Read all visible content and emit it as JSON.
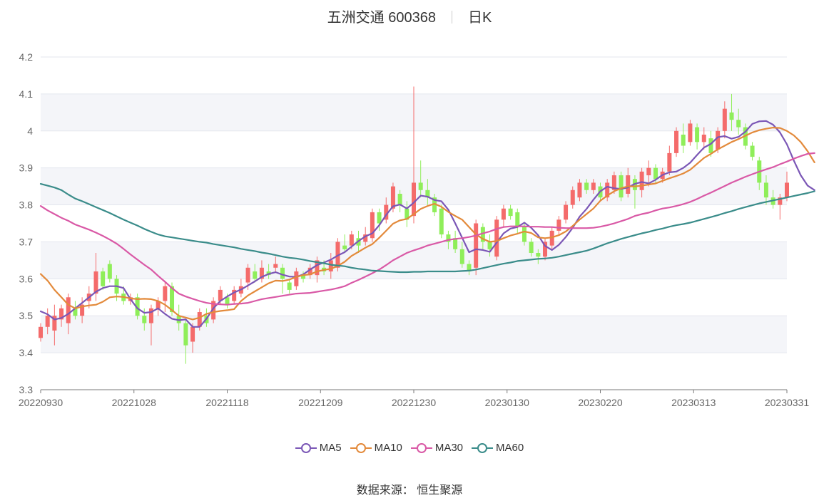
{
  "title": {
    "stock": "五洲交通 600368",
    "period": "日K"
  },
  "source": "数据来源： 恒生聚源",
  "colors": {
    "up": "#f46b6b",
    "down": "#8fee5a",
    "MA5": "#7b57b6",
    "MA10": "#e38a3b",
    "MA30": "#d959a6",
    "MA60": "#3a8c8a"
  },
  "chart_data": {
    "type": "candlestick",
    "ylim": [
      3.3,
      4.2
    ],
    "yticks": [
      "3.3",
      "3.4",
      "3.5",
      "3.6",
      "3.7",
      "3.8",
      "3.9",
      "4",
      "4.1",
      "4.2"
    ],
    "xticks": [
      "20220930",
      "20221028",
      "20221118",
      "20221209",
      "20221230",
      "20230130",
      "20230220",
      "20230313",
      "20230331"
    ],
    "candles": [
      [
        3.44,
        3.47,
        3.43,
        3.48
      ],
      [
        3.47,
        3.5,
        3.45,
        3.52
      ],
      [
        3.46,
        3.5,
        3.42,
        3.53
      ],
      [
        3.49,
        3.52,
        3.47,
        3.53
      ],
      [
        3.48,
        3.55,
        3.45,
        3.56
      ],
      [
        3.52,
        3.5,
        3.49,
        3.54
      ],
      [
        3.5,
        3.53,
        3.48,
        3.55
      ],
      [
        3.54,
        3.56,
        3.52,
        3.58
      ],
      [
        3.56,
        3.62,
        3.54,
        3.67
      ],
      [
        3.62,
        3.58,
        3.57,
        3.63
      ],
      [
        3.64,
        3.6,
        3.59,
        3.65
      ],
      [
        3.6,
        3.56,
        3.54,
        3.61
      ],
      [
        3.56,
        3.54,
        3.53,
        3.58
      ],
      [
        3.54,
        3.55,
        3.53,
        3.56
      ],
      [
        3.55,
        3.5,
        3.49,
        3.56
      ],
      [
        3.5,
        3.48,
        3.46,
        3.52
      ],
      [
        3.48,
        3.52,
        3.42,
        3.53
      ],
      [
        3.52,
        3.54,
        3.5,
        3.55
      ],
      [
        3.54,
        3.58,
        3.51,
        3.59
      ],
      [
        3.58,
        3.51,
        3.5,
        3.59
      ],
      [
        3.5,
        3.48,
        3.46,
        3.53
      ],
      [
        3.48,
        3.42,
        3.37,
        3.49
      ],
      [
        3.43,
        3.47,
        3.4,
        3.48
      ],
      [
        3.47,
        3.51,
        3.46,
        3.52
      ],
      [
        3.5,
        3.48,
        3.47,
        3.52
      ],
      [
        3.49,
        3.54,
        3.48,
        3.55
      ],
      [
        3.54,
        3.57,
        3.53,
        3.58
      ],
      [
        3.55,
        3.53,
        3.52,
        3.56
      ],
      [
        3.54,
        3.57,
        3.53,
        3.58
      ],
      [
        3.56,
        3.58,
        3.55,
        3.6
      ],
      [
        3.59,
        3.63,
        3.57,
        3.64
      ],
      [
        3.62,
        3.6,
        3.59,
        3.64
      ],
      [
        3.6,
        3.63,
        3.59,
        3.65
      ],
      [
        3.62,
        3.61,
        3.6,
        3.64
      ],
      [
        3.63,
        3.64,
        3.62,
        3.66
      ],
      [
        3.63,
        3.6,
        3.56,
        3.64
      ],
      [
        3.59,
        3.57,
        3.56,
        3.6
      ],
      [
        3.58,
        3.62,
        3.57,
        3.63
      ],
      [
        3.61,
        3.6,
        3.59,
        3.62
      ],
      [
        3.61,
        3.63,
        3.6,
        3.64
      ],
      [
        3.61,
        3.65,
        3.59,
        3.66
      ],
      [
        3.63,
        3.62,
        3.61,
        3.65
      ],
      [
        3.62,
        3.65,
        3.6,
        3.67
      ],
      [
        3.63,
        3.7,
        3.62,
        3.71
      ],
      [
        3.69,
        3.68,
        3.67,
        3.72
      ],
      [
        3.69,
        3.72,
        3.68,
        3.73
      ],
      [
        3.71,
        3.69,
        3.67,
        3.73
      ],
      [
        3.7,
        3.72,
        3.69,
        3.74
      ],
      [
        3.71,
        3.78,
        3.7,
        3.79
      ],
      [
        3.78,
        3.75,
        3.73,
        3.79
      ],
      [
        3.76,
        3.8,
        3.75,
        3.82
      ],
      [
        3.79,
        3.85,
        3.78,
        3.86
      ],
      [
        3.83,
        3.8,
        3.78,
        3.84
      ],
      [
        3.79,
        3.76,
        3.74,
        3.81
      ],
      [
        3.77,
        3.86,
        3.75,
        4.12
      ],
      [
        3.86,
        3.84,
        3.82,
        3.92
      ],
      [
        3.84,
        3.82,
        3.8,
        3.87
      ],
      [
        3.82,
        3.78,
        3.77,
        3.83
      ],
      [
        3.79,
        3.72,
        3.71,
        3.8
      ],
      [
        3.72,
        3.7,
        3.68,
        3.73
      ],
      [
        3.71,
        3.68,
        3.67,
        3.73
      ],
      [
        3.68,
        3.64,
        3.63,
        3.7
      ],
      [
        3.64,
        3.62,
        3.61,
        3.65
      ],
      [
        3.63,
        3.75,
        3.61,
        3.76
      ],
      [
        3.74,
        3.7,
        3.68,
        3.75
      ],
      [
        3.7,
        3.68,
        3.66,
        3.72
      ],
      [
        3.66,
        3.76,
        3.65,
        3.77
      ],
      [
        3.76,
        3.79,
        3.74,
        3.8
      ],
      [
        3.79,
        3.77,
        3.76,
        3.8
      ],
      [
        3.78,
        3.74,
        3.72,
        3.79
      ],
      [
        3.74,
        3.7,
        3.69,
        3.75
      ],
      [
        3.7,
        3.67,
        3.66,
        3.71
      ],
      [
        3.67,
        3.66,
        3.64,
        3.68
      ],
      [
        3.66,
        3.7,
        3.65,
        3.71
      ],
      [
        3.69,
        3.73,
        3.68,
        3.74
      ],
      [
        3.73,
        3.76,
        3.72,
        3.77
      ],
      [
        3.76,
        3.8,
        3.75,
        3.81
      ],
      [
        3.8,
        3.84,
        3.79,
        3.85
      ],
      [
        3.82,
        3.86,
        3.81,
        3.87
      ],
      [
        3.86,
        3.84,
        3.83,
        3.87
      ],
      [
        3.84,
        3.86,
        3.83,
        3.87
      ],
      [
        3.85,
        3.82,
        3.81,
        3.86
      ],
      [
        3.82,
        3.86,
        3.81,
        3.87
      ],
      [
        3.84,
        3.88,
        3.83,
        3.89
      ],
      [
        3.88,
        3.82,
        3.81,
        3.89
      ],
      [
        3.83,
        3.88,
        3.82,
        3.9
      ],
      [
        3.87,
        3.84,
        3.79,
        3.88
      ],
      [
        3.84,
        3.89,
        3.82,
        3.9
      ],
      [
        3.88,
        3.9,
        3.85,
        3.92
      ],
      [
        3.9,
        3.87,
        3.86,
        3.91
      ],
      [
        3.87,
        3.89,
        3.86,
        3.9
      ],
      [
        3.89,
        3.94,
        3.88,
        3.96
      ],
      [
        3.94,
        4.0,
        3.93,
        4.01
      ],
      [
        3.99,
        3.96,
        3.94,
        4.02
      ],
      [
        3.97,
        4.02,
        3.96,
        4.03
      ],
      [
        4.01,
        3.97,
        3.95,
        4.02
      ],
      [
        3.97,
        3.99,
        3.95,
        4.01
      ],
      [
        3.98,
        3.94,
        3.93,
        4.0
      ],
      [
        3.95,
        4.0,
        3.94,
        4.01
      ],
      [
        4.0,
        4.06,
        3.98,
        4.08
      ],
      [
        4.05,
        4.03,
        4.0,
        4.1
      ],
      [
        4.03,
        4.01,
        3.99,
        4.06
      ],
      [
        4.01,
        3.96,
        3.95,
        4.02
      ],
      [
        3.96,
        3.93,
        3.92,
        3.97
      ],
      [
        3.92,
        3.86,
        3.84,
        3.93
      ],
      [
        3.86,
        3.82,
        3.8,
        3.88
      ],
      [
        3.82,
        3.8,
        3.79,
        3.84
      ],
      [
        3.8,
        3.82,
        3.76,
        3.83
      ],
      [
        3.82,
        3.86,
        3.81,
        3.89
      ]
    ],
    "series": [
      {
        "name": "MA5",
        "values": [
          3.512,
          3.504,
          3.49,
          3.494,
          3.505,
          3.52,
          3.535,
          3.55,
          3.565,
          3.575,
          3.58,
          3.58,
          3.575,
          3.545,
          3.52,
          3.508,
          3.51,
          3.52,
          3.505,
          3.492,
          3.488,
          3.49,
          3.47,
          3.47,
          3.492,
          3.52,
          3.54,
          3.552,
          3.563,
          3.571,
          3.582,
          3.593,
          3.605,
          3.613,
          3.618,
          3.611,
          3.606,
          3.605,
          3.612,
          3.625,
          3.637,
          3.644,
          3.652,
          3.663,
          3.672,
          3.687,
          3.702,
          3.715,
          3.723,
          3.745,
          3.773,
          3.796,
          3.801,
          3.79,
          3.806,
          3.825,
          3.822,
          3.813,
          3.81,
          3.787,
          3.75,
          3.711,
          3.672,
          3.68,
          3.678,
          3.673,
          3.698,
          3.723,
          3.736,
          3.74,
          3.752,
          3.738,
          3.718,
          3.689,
          3.678,
          3.692,
          3.713,
          3.738,
          3.768,
          3.789,
          3.814,
          3.837,
          3.849,
          3.845,
          3.843,
          3.847,
          3.857,
          3.862,
          3.858,
          3.868,
          3.881,
          3.888,
          3.89,
          3.9,
          3.914,
          3.935,
          3.955,
          3.965,
          3.983,
          3.986,
          3.979,
          3.984,
          3.998,
          4.019,
          4.026,
          4.027,
          4.017,
          3.996,
          3.964,
          3.92,
          3.88,
          3.852,
          3.84
        ]
      },
      {
        "name": "MA10",
        "values": [
          3.613,
          3.595,
          3.57,
          3.55,
          3.53,
          3.52,
          3.525,
          3.528,
          3.53,
          3.538,
          3.55,
          3.552,
          3.551,
          3.547,
          3.545,
          3.546,
          3.545,
          3.54,
          3.53,
          3.515,
          3.5,
          3.495,
          3.49,
          3.495,
          3.505,
          3.51,
          3.513,
          3.515,
          3.518,
          3.54,
          3.555,
          3.566,
          3.577,
          3.588,
          3.595,
          3.594,
          3.598,
          3.605,
          3.61,
          3.612,
          3.62,
          3.624,
          3.627,
          3.635,
          3.646,
          3.662,
          3.673,
          3.684,
          3.694,
          3.711,
          3.73,
          3.749,
          3.758,
          3.762,
          3.775,
          3.789,
          3.797,
          3.803,
          3.795,
          3.781,
          3.77,
          3.76,
          3.74,
          3.72,
          3.708,
          3.7,
          3.702,
          3.71,
          3.717,
          3.722,
          3.728,
          3.724,
          3.712,
          3.71,
          3.712,
          3.718,
          3.728,
          3.743,
          3.76,
          3.775,
          3.79,
          3.811,
          3.825,
          3.837,
          3.845,
          3.85,
          3.85,
          3.852,
          3.855,
          3.858,
          3.865,
          3.872,
          3.878,
          3.885,
          3.895,
          3.911,
          3.927,
          3.938,
          3.95,
          3.96,
          3.97,
          3.978,
          3.987,
          3.996,
          4.002,
          4.006,
          4.009,
          4.008,
          4.0,
          3.988,
          3.97,
          3.945,
          3.915
        ]
      },
      {
        "name": "MA30",
        "values": [
          3.797,
          3.785,
          3.775,
          3.765,
          3.757,
          3.747,
          3.74,
          3.733,
          3.725,
          3.716,
          3.706,
          3.695,
          3.681,
          3.666,
          3.652,
          3.638,
          3.625,
          3.608,
          3.592,
          3.575,
          3.56,
          3.552,
          3.546,
          3.54,
          3.535,
          3.532,
          3.531,
          3.53,
          3.532,
          3.533,
          3.535,
          3.54,
          3.545,
          3.548,
          3.551,
          3.554,
          3.557,
          3.56,
          3.561,
          3.562,
          3.565,
          3.568,
          3.571,
          3.575,
          3.58,
          3.589,
          3.597,
          3.606,
          3.615,
          3.625,
          3.637,
          3.65,
          3.66,
          3.67,
          3.677,
          3.683,
          3.69,
          3.695,
          3.7,
          3.705,
          3.708,
          3.71,
          3.713,
          3.717,
          3.723,
          3.728,
          3.735,
          3.74,
          3.742,
          3.742,
          3.742,
          3.741,
          3.741,
          3.74,
          3.74,
          3.738,
          3.737,
          3.737,
          3.737,
          3.737,
          3.738,
          3.741,
          3.745,
          3.75,
          3.756,
          3.762,
          3.77,
          3.775,
          3.779,
          3.785,
          3.79,
          3.793,
          3.797,
          3.802,
          3.808,
          3.816,
          3.825,
          3.833,
          3.842,
          3.851,
          3.86,
          3.868,
          3.876,
          3.883,
          3.89,
          3.896,
          3.902,
          3.91,
          3.917,
          3.925,
          3.932,
          3.938,
          3.94
        ]
      },
      {
        "name": "MA60",
        "values": [
          3.857,
          3.852,
          3.847,
          3.84,
          3.828,
          3.817,
          3.81,
          3.802,
          3.794,
          3.786,
          3.778,
          3.769,
          3.76,
          3.752,
          3.744,
          3.735,
          3.727,
          3.72,
          3.715,
          3.712,
          3.709,
          3.706,
          3.703,
          3.7,
          3.698,
          3.694,
          3.691,
          3.688,
          3.685,
          3.681,
          3.678,
          3.675,
          3.671,
          3.668,
          3.664,
          3.66,
          3.657,
          3.655,
          3.652,
          3.648,
          3.645,
          3.642,
          3.638,
          3.636,
          3.634,
          3.63,
          3.627,
          3.625,
          3.622,
          3.621,
          3.62,
          3.619,
          3.618,
          3.618,
          3.619,
          3.619,
          3.62,
          3.62,
          3.62,
          3.62,
          3.62,
          3.621,
          3.622,
          3.625,
          3.629,
          3.633,
          3.637,
          3.641,
          3.644,
          3.648,
          3.65,
          3.652,
          3.654,
          3.655,
          3.657,
          3.66,
          3.664,
          3.668,
          3.672,
          3.676,
          3.682,
          3.689,
          3.696,
          3.702,
          3.708,
          3.713,
          3.718,
          3.723,
          3.727,
          3.732,
          3.736,
          3.741,
          3.745,
          3.748,
          3.752,
          3.757,
          3.762,
          3.767,
          3.772,
          3.778,
          3.783,
          3.789,
          3.794,
          3.799,
          3.804,
          3.808,
          3.812,
          3.816,
          3.82,
          3.824,
          3.828,
          3.832,
          3.837
        ]
      }
    ]
  }
}
